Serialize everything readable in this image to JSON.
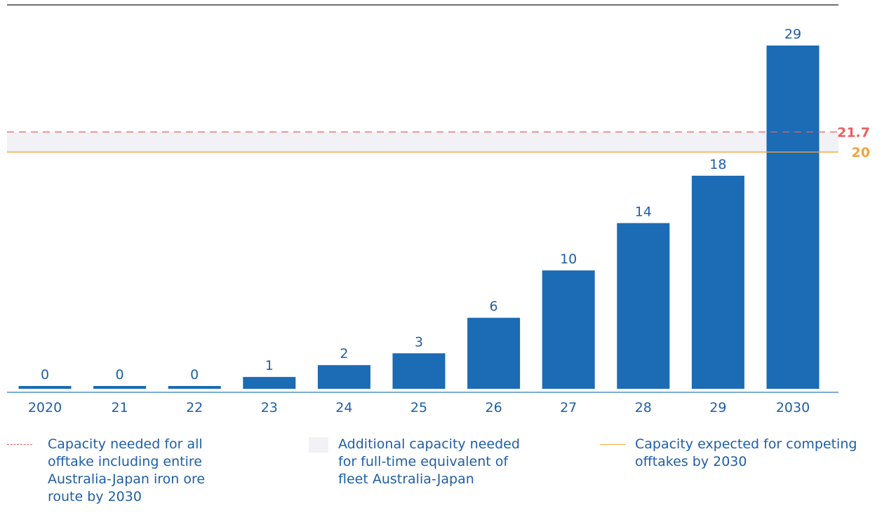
{
  "chart_data": {
    "type": "bar",
    "categories": [
      "2020",
      "21",
      "22",
      "23",
      "24",
      "25",
      "26",
      "27",
      "28",
      "29",
      "2030"
    ],
    "values": [
      0,
      0,
      0,
      1,
      2,
      3,
      6,
      10,
      14,
      18,
      29
    ],
    "value_labels": [
      "0",
      "0",
      "0",
      "1",
      "2",
      "3",
      "6",
      "10",
      "14",
      "18",
      "29"
    ],
    "ylim": [
      0,
      30
    ],
    "reference_lines": [
      {
        "value": 21.7,
        "label": "21.7",
        "style": "dashed",
        "color": "#e8615f"
      },
      {
        "value": 20,
        "label": "20",
        "style": "solid",
        "color": "#f0a53d"
      }
    ],
    "band": {
      "from": 20,
      "to": 21.7,
      "color": "#f2f1f5"
    },
    "legend": [
      {
        "label": "Capacity needed for all offtake including entire Australia-Japan iron ore route by 2030",
        "style": "dashed"
      },
      {
        "label": "Additional capacity needed for full-time equivalent of fleet Australia-Japan",
        "style": "band"
      },
      {
        "label": "Capacity expected for competing offtakes by 2030",
        "style": "solid"
      }
    ],
    "legend_placement": "bottom",
    "grid": false,
    "bar_color": "#1b6bb5"
  }
}
